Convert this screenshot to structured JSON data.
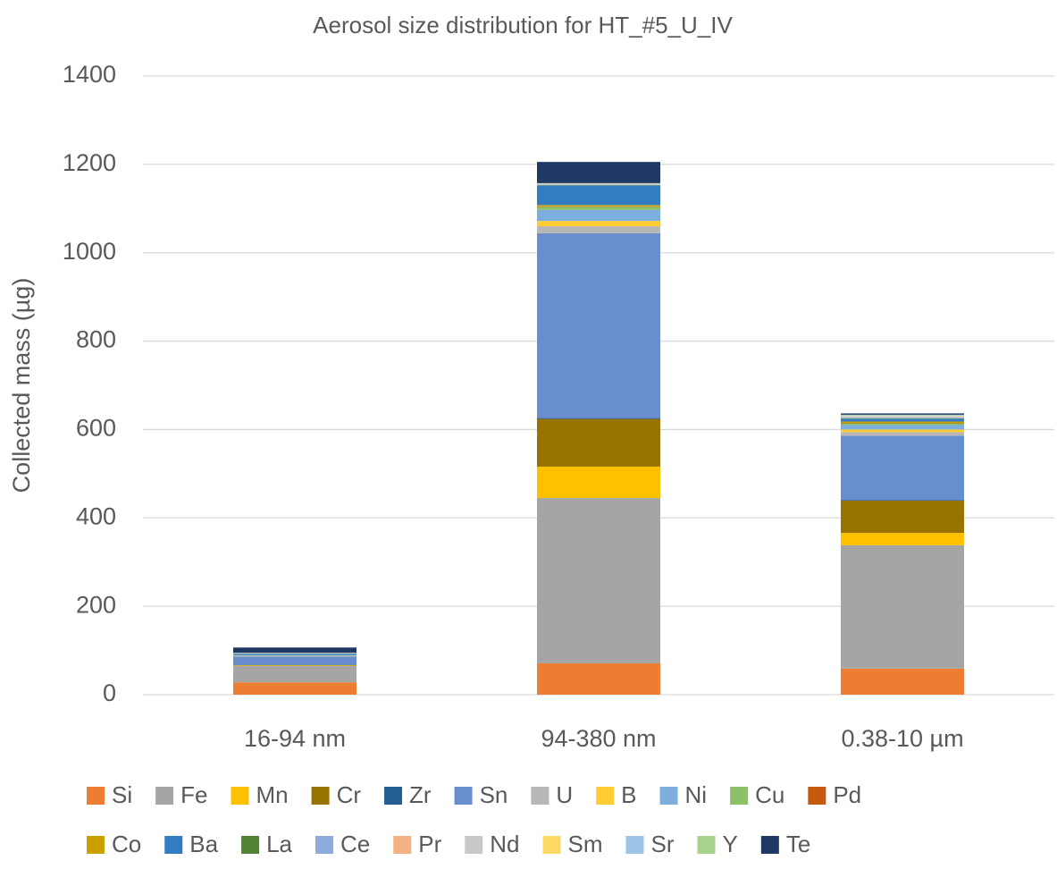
{
  "chart_data": {
    "type": "stacked_bar",
    "title": "Aerosol size distribution for HT_#5_U_IV",
    "ylabel": "Collected mass (µg)",
    "categories": [
      "16-94 nm",
      "94-380 nm",
      "0.38-10 µm"
    ],
    "ylim": [
      0,
      1400
    ],
    "yticks": [
      0,
      200,
      400,
      600,
      800,
      1000,
      1200,
      1400
    ],
    "grid": true,
    "legend": "bottom",
    "series": [
      {
        "name": "Si",
        "color": "#ED7D31",
        "values": [
          28,
          71,
          59
        ]
      },
      {
        "name": "Fe",
        "color": "#A5A5A5",
        "values": [
          37,
          374,
          279
        ]
      },
      {
        "name": "Mn",
        "color": "#FFC000",
        "values": [
          1,
          71,
          28
        ]
      },
      {
        "name": "Cr",
        "color": "#997300",
        "values": [
          1,
          108,
          73
        ]
      },
      {
        "name": "Zr",
        "color": "#255E91",
        "values": [
          1,
          2,
          1
        ]
      },
      {
        "name": "Sn",
        "color": "#698ED0",
        "values": [
          18,
          418,
          146
        ]
      },
      {
        "name": "U",
        "color": "#B7B7B7",
        "values": [
          1,
          16,
          8
        ]
      },
      {
        "name": "B",
        "color": "#FFCD33",
        "values": [
          0.5,
          12,
          6
        ]
      },
      {
        "name": "Ni",
        "color": "#7CAFDD",
        "values": [
          1,
          25,
          10
        ]
      },
      {
        "name": "Cu",
        "color": "#8CC168",
        "values": [
          0.5,
          7,
          4
        ]
      },
      {
        "name": "Pd",
        "color": "#C55A11",
        "values": [
          0.2,
          1,
          1
        ]
      },
      {
        "name": "Co",
        "color": "#C9A000",
        "values": [
          0.2,
          3,
          3
        ]
      },
      {
        "name": "Ba",
        "color": "#327DC2",
        "values": [
          3,
          44,
          6
        ]
      },
      {
        "name": "La",
        "color": "#548235",
        "values": [
          0.2,
          1,
          1
        ]
      },
      {
        "name": "Ce",
        "color": "#8FAADC",
        "values": [
          0.5,
          1,
          2
        ]
      },
      {
        "name": "Pr",
        "color": "#F4B183",
        "values": [
          0.2,
          0.5,
          0.5
        ]
      },
      {
        "name": "Nd",
        "color": "#C9C9C9",
        "values": [
          0.5,
          1,
          2
        ]
      },
      {
        "name": "Sm",
        "color": "#FFD966",
        "values": [
          0.2,
          0.5,
          1
        ]
      },
      {
        "name": "Sr",
        "color": "#9DC3E6",
        "values": [
          0.5,
          1,
          2
        ]
      },
      {
        "name": "Y",
        "color": "#A9D18E",
        "values": [
          0.2,
          0.5,
          1
        ]
      },
      {
        "name": "Te",
        "color": "#203864",
        "values": [
          12,
          48,
          3
        ]
      }
    ]
  }
}
